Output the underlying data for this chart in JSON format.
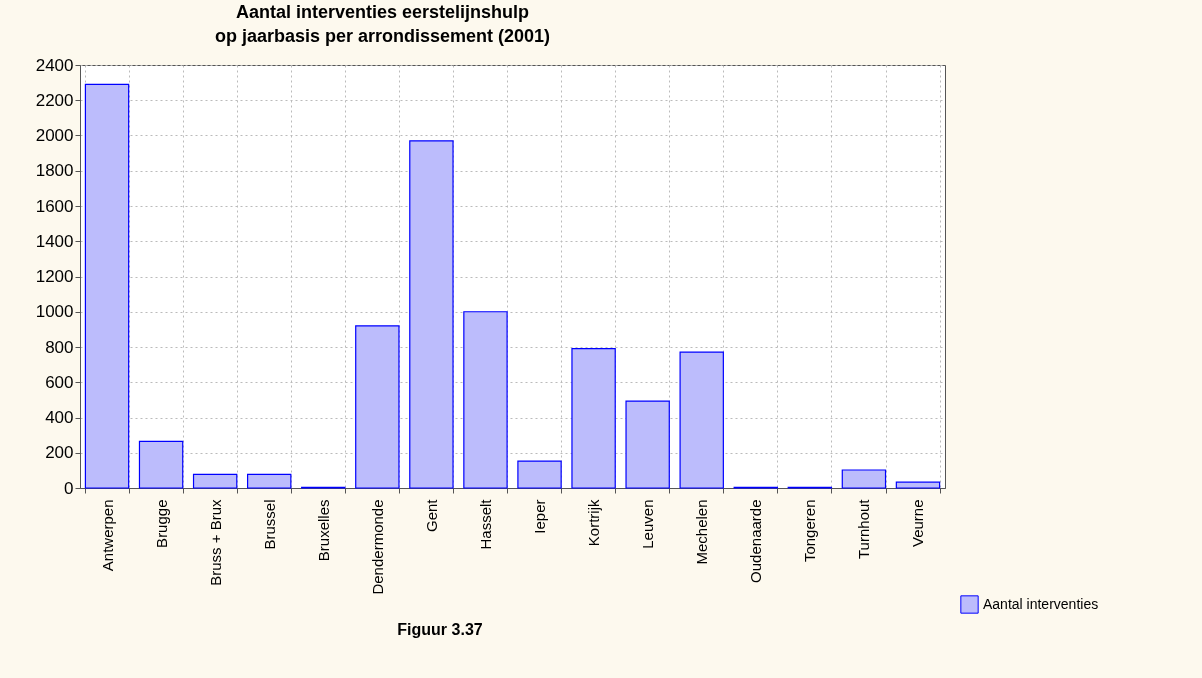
{
  "chart_data": {
    "type": "bar",
    "title": [
      "Aantal interventies eerstelijnshulp",
      "op jaarbasis per arrondissement (2001)"
    ],
    "categories": [
      "Antwerpen",
      "Brugge",
      "Bruss + Brux",
      "Brussel",
      "Bruxelles",
      "Dendermonde",
      "Gent",
      "Hasselt",
      "Ieper",
      "Kortrijk",
      "Leuven",
      "Mechelen",
      "Oudenaarde",
      "Tongeren",
      "Turnhout",
      "Veurne"
    ],
    "series": [
      {
        "name": "Aantal interventies",
        "color": "#bcbcfc",
        "values": [
          2290,
          265,
          77,
          77,
          4,
          920,
          1970,
          1000,
          153,
          791,
          493,
          771,
          4,
          4,
          102,
          33
        ]
      }
    ],
    "ylim": [
      0,
      2400
    ],
    "yticks": [
      0,
      200,
      400,
      600,
      800,
      1000,
      1200,
      1400,
      1600,
      1800,
      2000,
      2200,
      2400
    ],
    "grid": true,
    "legend": "bottom right",
    "annotations": [
      "Figuur 3.37"
    ]
  }
}
